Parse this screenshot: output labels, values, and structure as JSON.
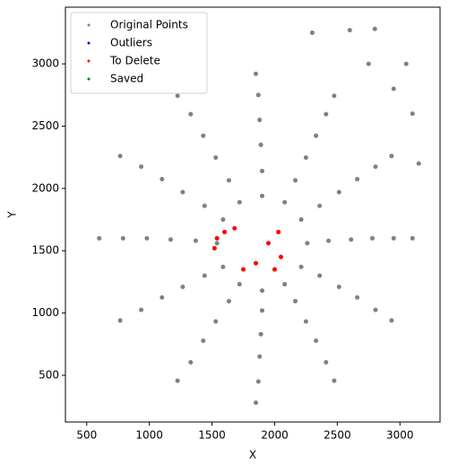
{
  "chart_data": {
    "type": "scatter",
    "xlabel": "X",
    "ylabel": "Y",
    "xlim": [
      330,
      3320
    ],
    "ylim": [
      125,
      3455
    ],
    "xticks": [
      500,
      1000,
      1500,
      2000,
      2500,
      3000
    ],
    "yticks": [
      500,
      1000,
      1500,
      2000,
      2500,
      3000
    ],
    "legend": "upper left",
    "series": [
      {
        "name": "Original Points",
        "color": "#808080",
        "x": [
          3100,
          2933,
          2475,
          1850,
          1225,
          767,
          600,
          767,
          1225,
          1850,
          2475,
          2933,
          2950,
          2805,
          2410,
          1870,
          1330,
          935,
          790,
          935,
          1330,
          1870,
          2410,
          2805,
          2780,
          2659,
          2330,
          1880,
          1430,
          1101,
          980,
          1101,
          1430,
          1880,
          2330,
          2659,
          2610,
          2514,
          2250,
          1890,
          1530,
          1266,
          1170,
          1266,
          1530,
          1890,
          2250,
          2514,
          2430,
          2359,
          2165,
          1900,
          1635,
          1441,
          1370,
          1441,
          1635,
          1900,
          2165,
          2359,
          2260,
          2212,
          2080,
          1900,
          1720,
          1588,
          1540,
          1588,
          1720,
          1900,
          2080,
          2212,
          2300,
          2600,
          2800,
          2750,
          2950,
          3100,
          3150,
          3050
        ],
        "y": [
          1600,
          2260,
          2743,
          2920,
          2743,
          2260,
          1600,
          940,
          457,
          280,
          457,
          940,
          1600,
          2175,
          2596,
          2750,
          2596,
          2175,
          1600,
          1025,
          604,
          450,
          604,
          1025,
          1600,
          2075,
          2423,
          2550,
          2423,
          2075,
          1600,
          1125,
          777,
          650,
          777,
          1125,
          1590,
          1970,
          2248,
          2350,
          2248,
          1970,
          1590,
          1210,
          932,
          830,
          932,
          1210,
          1580,
          1860,
          2065,
          2140,
          2065,
          1860,
          1580,
          1300,
          1095,
          1020,
          1095,
          1300,
          1560,
          1750,
          1889,
          1940,
          1889,
          1750,
          1560,
          1370,
          1231,
          1180,
          1231,
          1370,
          3250,
          3270,
          3280,
          3000,
          2800,
          2600,
          2200,
          3000
        ]
      },
      {
        "name": "Outliers",
        "color": "#0000ff",
        "x": [],
        "y": []
      },
      {
        "name": "To Delete",
        "color": "#ff0000",
        "x": [
          1520,
          1540,
          1600,
          1680,
          1750,
          1850,
          1950,
          2000,
          2050,
          2030
        ],
        "y": [
          1520,
          1600,
          1650,
          1680,
          1350,
          1400,
          1560,
          1350,
          1450,
          1650
        ]
      },
      {
        "name": "Saved",
        "color": "#008000",
        "x": [],
        "y": []
      }
    ]
  }
}
